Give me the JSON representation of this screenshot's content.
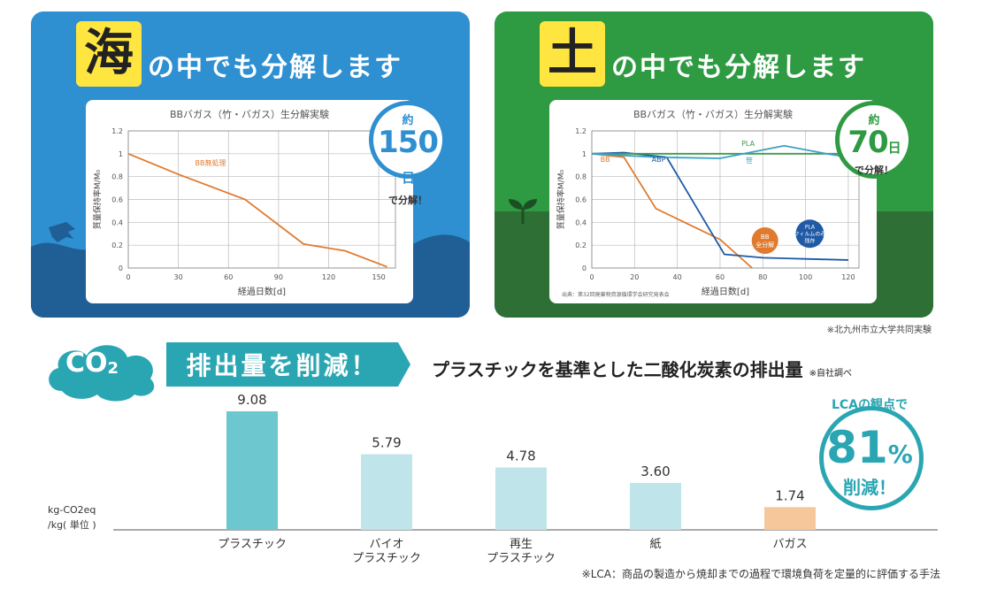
{
  "sea": {
    "highlight_char": "海",
    "headline": "の中でも分解します",
    "bubble": {
      "top": "約",
      "number": "150",
      "unit": "日",
      "bottom": "で分解！"
    }
  },
  "soil": {
    "highlight_char": "土",
    "headline": "の中でも分解します",
    "bubble": {
      "top": "約",
      "number": "70",
      "unit": "日",
      "bottom": "で分解！"
    },
    "source_note": "出典：第32回廃棄物資源循環学会研究発表会",
    "callout_bb": "BB 全分解",
    "callout_pla": "PLA フィルムのみ 残存"
  },
  "right_note": "※北九州市立大学共同実験",
  "co2": {
    "badge": "CO",
    "badge_sub": "2",
    "reduce_label": "排出量を削減！",
    "title": "プラスチックを基準とした二酸化炭素の排出量",
    "title_note": "※自社調べ",
    "unit_label_1": "kg-CO2eq",
    "unit_label_2": "/kg( 単位 )",
    "lca": {
      "line1": "LCAの観点で",
      "value": "81",
      "pct": "%",
      "line3": "削減！"
    },
    "footnote": "※LCA：商品の製造から焼却までの過程で環境負荷を定量的に評価する手法"
  },
  "chart_data": [
    {
      "type": "line",
      "title": "BBバガス（竹・バガス）生分解実験",
      "xlabel": "経過日数[d]",
      "ylabel": "質量保持率M/M₀",
      "xlim": [
        0,
        160
      ],
      "ylim": [
        0,
        1.2
      ],
      "xticks": [
        0,
        30,
        60,
        90,
        120,
        150
      ],
      "yticks": [
        0,
        0.2,
        0.4,
        0.6,
        0.8,
        1,
        1.2
      ],
      "grid": true,
      "series": [
        {
          "name": "BB無処理",
          "color": "#e07a2e",
          "x": [
            0,
            30,
            70,
            105,
            130,
            155
          ],
          "y": [
            1.0,
            0.82,
            0.6,
            0.21,
            0.15,
            0.01
          ]
        }
      ]
    },
    {
      "type": "line",
      "title": "BBバガス（竹・バガス）生分解実験",
      "xlabel": "経過日数[d]",
      "ylabel": "質量保持率M/M₀",
      "xlim": [
        0,
        125
      ],
      "ylim": [
        0,
        1.2
      ],
      "xticks": [
        0,
        20,
        40,
        60,
        80,
        100,
        120
      ],
      "yticks": [
        0,
        0.2,
        0.4,
        0.6,
        0.8,
        1,
        1.2
      ],
      "grid": true,
      "series": [
        {
          "name": "BB",
          "color": "#e07a2e",
          "x": [
            0,
            15,
            30,
            60,
            75
          ],
          "y": [
            1.0,
            0.97,
            0.52,
            0.25,
            0.0
          ]
        },
        {
          "name": "ABP",
          "color": "#1f5aa6",
          "x": [
            0,
            15,
            35,
            62,
            80,
            100,
            120
          ],
          "y": [
            1.0,
            1.01,
            0.97,
            0.12,
            0.09,
            0.08,
            0.07
          ]
        },
        {
          "name": "PLA",
          "color": "#3f9a4a",
          "x": [
            0,
            40,
            80,
            120
          ],
          "y": [
            1.0,
            1.0,
            1.0,
            1.0
          ]
        },
        {
          "name": "笹",
          "color": "#3aa0c8",
          "x": [
            0,
            30,
            60,
            90,
            110,
            120
          ],
          "y": [
            1.0,
            0.97,
            0.96,
            1.07,
            1.0,
            0.97
          ]
        }
      ]
    },
    {
      "type": "bar",
      "categories": [
        "プラスチック",
        "バイオ\nプラスチック",
        "再生\nプラスチック",
        "紙",
        "バガス"
      ],
      "values": [
        9.08,
        5.79,
        4.78,
        3.6,
        1.74
      ],
      "value_labels": [
        "9.08",
        "5.79",
        "4.78",
        "3.60",
        "1.74"
      ],
      "colors": [
        "#6cc7cf",
        "#bfe5ea",
        "#bfe5ea",
        "#bfe5ea",
        "#f6c79a"
      ],
      "ylabel": "kg-CO2eq /kg( 単位 )",
      "ylim": [
        0,
        10
      ]
    }
  ]
}
